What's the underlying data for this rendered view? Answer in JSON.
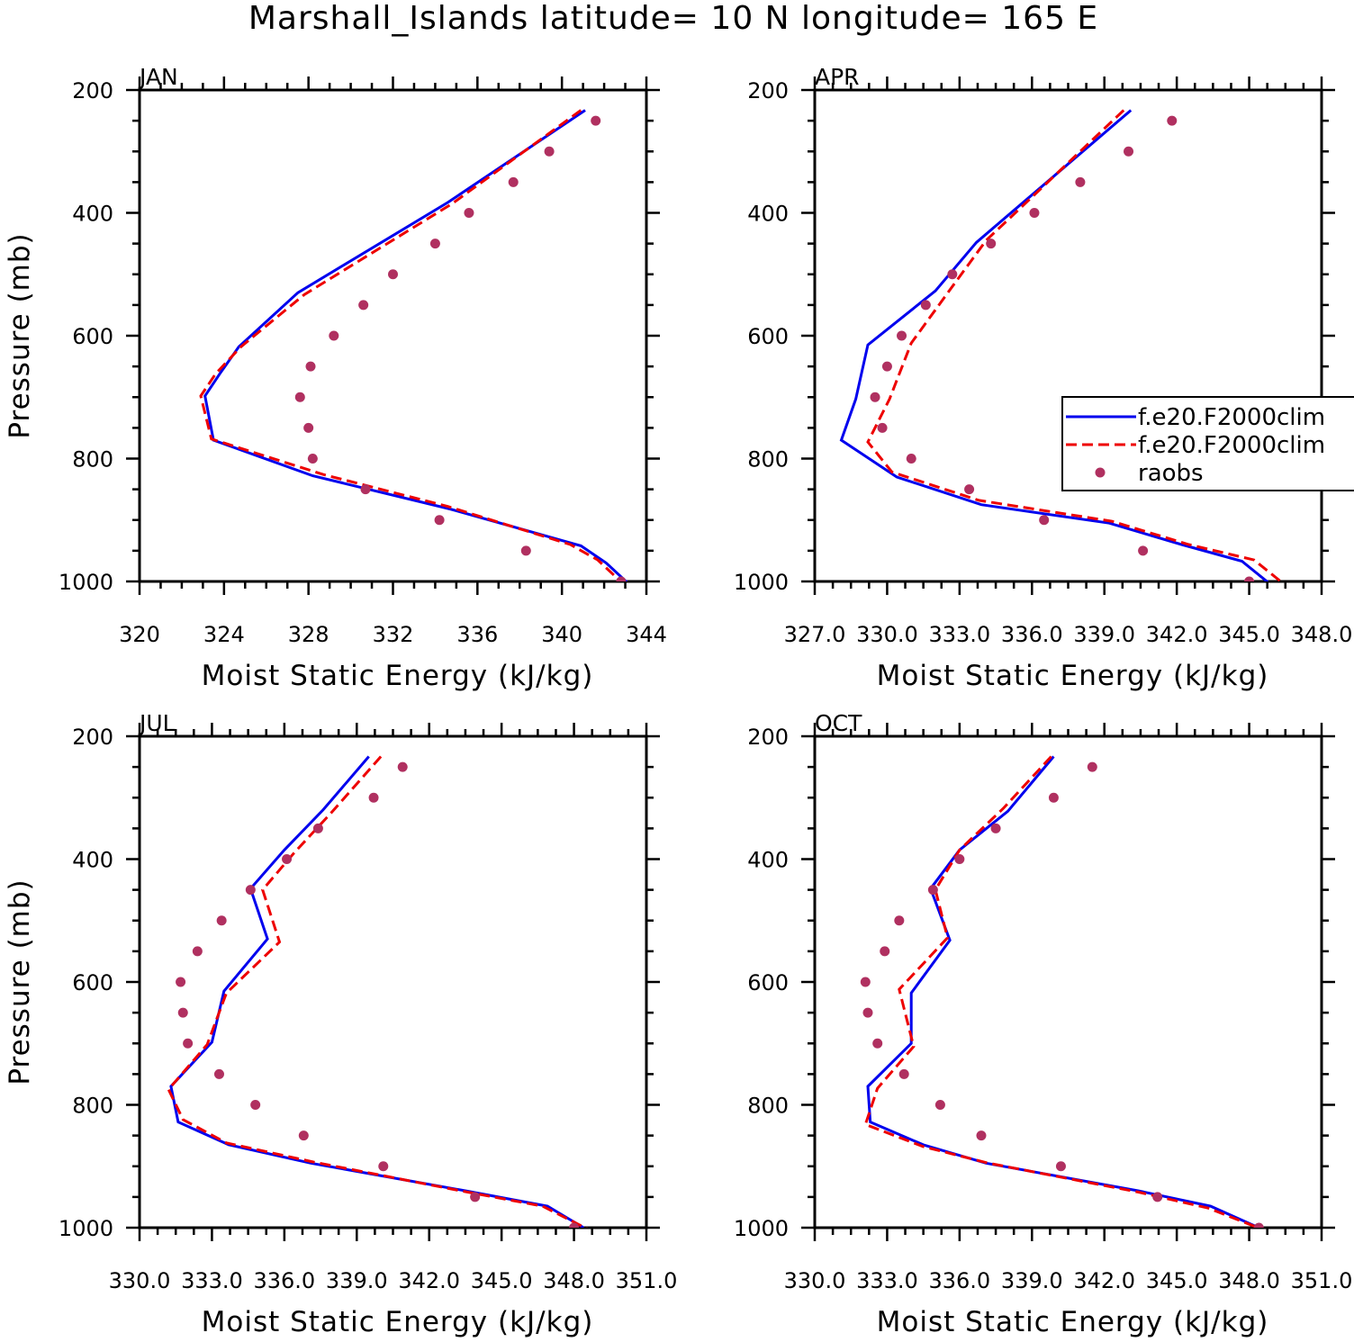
{
  "title": "Marshall_Islands  latitude= 10 N longitude= 165 E",
  "legend": {
    "entries": [
      {
        "label": "f.e20.F2000clim",
        "style": "solid",
        "color": "#0000ee"
      },
      {
        "label": "f.e20.F2000clim",
        "style": "dashed",
        "color": "#ee0000"
      },
      {
        "label": "raobs",
        "style": "marker",
        "color": "#b03060"
      }
    ]
  },
  "chart_data": [
    {
      "panel": "JAN",
      "type": "line",
      "xlabel": "Moist Static Energy (kJ/kg)",
      "ylabel": "Pressure (mb)",
      "xlim": [
        320,
        344
      ],
      "ylim": [
        200,
        1000
      ],
      "y_inverted": false,
      "xticks": [
        320,
        324,
        328,
        332,
        336,
        340,
        344
      ],
      "xtick_labels": [
        "320",
        "324",
        "328",
        "332",
        "336",
        "340",
        "344"
      ],
      "yticks": [
        200,
        400,
        600,
        800,
        1000
      ],
      "ytick_labels": [
        "200",
        "400",
        "600",
        "800",
        "1000"
      ],
      "series": [
        {
          "name": "f.e20.F2000clim",
          "style": "solid",
          "x": [
            341.1,
            334.6,
            327.5,
            324.7,
            323.8,
            323.1,
            323.5,
            328.2,
            334.7,
            340.9,
            342.1,
            343.1
          ],
          "y": [
            233,
            383,
            530,
            618,
            662,
            698,
            770,
            828,
            882,
            942,
            970,
            1002
          ]
        },
        {
          "name": "f.e20.F2000clim",
          "style": "dashed",
          "x": [
            340.9,
            334.8,
            327.8,
            324.8,
            323.6,
            322.9,
            323.4,
            328.7,
            334.6,
            340.4,
            341.7,
            342.9
          ],
          "y": [
            233,
            385,
            533,
            618,
            662,
            698,
            768,
            826,
            878,
            940,
            965,
            1004
          ]
        },
        {
          "name": "raobs",
          "style": "marker",
          "x": [
            341.6,
            339.4,
            337.7,
            335.6,
            334.0,
            332.0,
            330.6,
            329.2,
            328.1,
            327.6,
            328.0,
            328.2,
            330.7,
            334.2,
            338.3,
            342.8
          ],
          "y": [
            250,
            300,
            350,
            400,
            450,
            500,
            550,
            600,
            650,
            700,
            750,
            800,
            850,
            900,
            950,
            1000
          ]
        }
      ]
    },
    {
      "panel": "APR",
      "type": "line",
      "xlabel": "Moist Static Energy (kJ/kg)",
      "ylabel": "",
      "xlim": [
        327.0,
        348.0
      ],
      "ylim": [
        200,
        1000
      ],
      "xticks": [
        327.0,
        330.0,
        333.0,
        336.0,
        339.0,
        342.0,
        345.0,
        348.0
      ],
      "xtick_labels": [
        "327.0",
        "330.0",
        "333.0",
        "336.0",
        "339.0",
        "342.0",
        "345.0",
        "348.0"
      ],
      "yticks": [
        200,
        400,
        600,
        800,
        1000
      ],
      "ytick_labels": [
        "200",
        "400",
        "600",
        "800",
        "1000"
      ],
      "series": [
        {
          "name": "f.e20.F2000clim",
          "style": "solid",
          "x": [
            340.1,
            333.7,
            332.0,
            329.2,
            328.7,
            328.1,
            330.4,
            333.9,
            339.2,
            342.2,
            344.7,
            345.8
          ],
          "y": [
            233,
            448,
            527,
            615,
            703,
            770,
            830,
            875,
            905,
            940,
            967,
            1002
          ]
        },
        {
          "name": "f.e20.F2000clim",
          "style": "dashed",
          "x": [
            339.8,
            334.1,
            332.7,
            331.0,
            330.1,
            329.2,
            330.2,
            333.8,
            339.3,
            342.5,
            345.2,
            346.4
          ],
          "y": [
            233,
            445,
            520,
            612,
            703,
            773,
            822,
            868,
            902,
            940,
            965,
            1003
          ]
        },
        {
          "name": "raobs",
          "style": "marker",
          "x": [
            341.8,
            340.0,
            338.0,
            336.1,
            334.3,
            332.7,
            331.6,
            330.6,
            330.0,
            329.5,
            329.8,
            331.0,
            333.4,
            336.5,
            340.6,
            345.0
          ],
          "y": [
            250,
            300,
            350,
            400,
            450,
            500,
            550,
            600,
            650,
            700,
            750,
            800,
            850,
            900,
            950,
            1000
          ]
        }
      ]
    },
    {
      "panel": "JUL",
      "type": "line",
      "xlabel": "Moist Static Energy (kJ/kg)",
      "ylabel": "Pressure (mb)",
      "xlim": [
        330.0,
        351.0
      ],
      "ylim": [
        200,
        1000
      ],
      "xticks": [
        330.0,
        333.0,
        336.0,
        339.0,
        342.0,
        345.0,
        348.0,
        351.0
      ],
      "xtick_labels": [
        "330.0",
        "333.0",
        "336.0",
        "339.0",
        "342.0",
        "345.0",
        "348.0",
        "351.0"
      ],
      "yticks": [
        200,
        400,
        600,
        800,
        1000
      ],
      "ytick_labels": [
        "200",
        "400",
        "600",
        "800",
        "1000"
      ],
      "series": [
        {
          "name": "f.e20.F2000clim",
          "style": "solid",
          "x": [
            339.5,
            337.6,
            336.0,
            334.6,
            335.3,
            333.5,
            333.0,
            331.3,
            331.6,
            333.7,
            337.1,
            343.5,
            346.9,
            348.4
          ],
          "y": [
            233,
            320,
            385,
            448,
            530,
            615,
            698,
            770,
            828,
            865,
            895,
            940,
            965,
            1000
          ]
        },
        {
          "name": "f.e20.F2000clim",
          "style": "dashed",
          "x": [
            340.0,
            338.0,
            336.4,
            335.1,
            335.8,
            333.6,
            332.8,
            331.2,
            331.8,
            333.6,
            337.2,
            343.3,
            346.7,
            348.6
          ],
          "y": [
            233,
            322,
            390,
            450,
            535,
            618,
            702,
            775,
            824,
            862,
            893,
            940,
            965,
            1003
          ]
        },
        {
          "name": "raobs",
          "style": "marker",
          "x": [
            340.9,
            339.7,
            337.4,
            336.1,
            334.6,
            333.4,
            332.4,
            331.7,
            331.8,
            332.0,
            333.3,
            334.8,
            336.8,
            340.1,
            343.9,
            348.0
          ],
          "y": [
            250,
            300,
            350,
            400,
            450,
            500,
            550,
            600,
            650,
            700,
            750,
            800,
            850,
            900,
            950,
            1000
          ]
        }
      ]
    },
    {
      "panel": "OCT",
      "type": "line",
      "xlabel": "Moist Static Energy (kJ/kg)",
      "ylabel": "",
      "xlim": [
        330.0,
        351.0
      ],
      "ylim": [
        200,
        1000
      ],
      "xticks": [
        330.0,
        333.0,
        336.0,
        339.0,
        342.0,
        345.0,
        348.0,
        351.0
      ],
      "xtick_labels": [
        "330.0",
        "333.0",
        "336.0",
        "339.0",
        "342.0",
        "345.0",
        "348.0",
        "351.0"
      ],
      "yticks": [
        200,
        400,
        600,
        800,
        1000
      ],
      "ytick_labels": [
        "200",
        "400",
        "600",
        "800",
        "1000"
      ],
      "series": [
        {
          "name": "f.e20.F2000clim",
          "style": "solid",
          "x": [
            339.9,
            338.0,
            336.0,
            334.8,
            335.6,
            334.0,
            334.0,
            332.2,
            332.3,
            334.5,
            337.1,
            343.4,
            346.4,
            348.4
          ],
          "y": [
            233,
            322,
            385,
            448,
            532,
            618,
            700,
            770,
            828,
            865,
            895,
            940,
            965,
            1000
          ]
        },
        {
          "name": "f.e20.F2000clim",
          "style": "dashed",
          "x": [
            339.8,
            337.8,
            336.0,
            335.0,
            335.5,
            333.5,
            334.1,
            332.6,
            332.1,
            334.5,
            337.2,
            343.4,
            346.3,
            348.5
          ],
          "y": [
            233,
            318,
            385,
            450,
            528,
            612,
            705,
            773,
            832,
            868,
            895,
            942,
            968,
            1002
          ]
        },
        {
          "name": "raobs",
          "style": "marker",
          "x": [
            341.5,
            339.9,
            337.5,
            336.0,
            334.9,
            333.5,
            332.9,
            332.1,
            332.2,
            332.6,
            333.7,
            335.2,
            336.9,
            340.2,
            344.2,
            348.4
          ],
          "y": [
            250,
            300,
            350,
            400,
            450,
            500,
            550,
            600,
            650,
            700,
            750,
            800,
            850,
            900,
            950,
            1000
          ]
        }
      ]
    }
  ]
}
